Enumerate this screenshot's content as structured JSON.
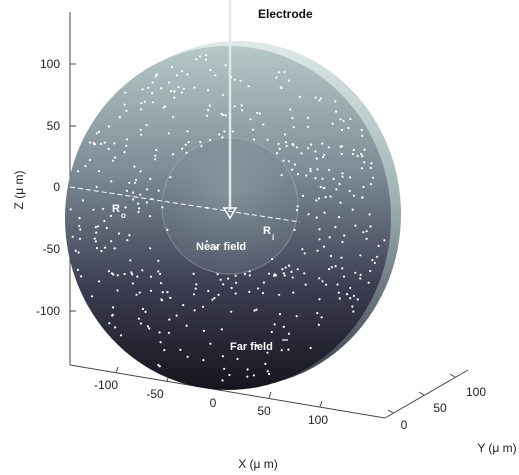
{
  "labels": {
    "electrode": "Electrode",
    "near_field": "Near field",
    "far_field": "Far field",
    "r_outer_main": "R",
    "r_outer_sub": "o",
    "r_inner_main": "R",
    "r_inner_sub": "i"
  },
  "axes": {
    "x_label": "X (μ m)",
    "y_label": "Y (μ m)",
    "z_label": "Z (μ m)",
    "z_ticks": [
      "100",
      "50",
      "0",
      "-50",
      "-100"
    ],
    "x_ticks": [
      "-100",
      "-50",
      "0",
      "50",
      "100"
    ],
    "y_ticks": [
      "0",
      "50",
      "100"
    ]
  },
  "colors": {
    "sphere_top": "#aebfc0",
    "sphere_bottom": "#1e1f2b",
    "inner_sphere": "#8f9ea6",
    "dots": "#ffffff",
    "electrode": "#e6e6e6"
  }
}
